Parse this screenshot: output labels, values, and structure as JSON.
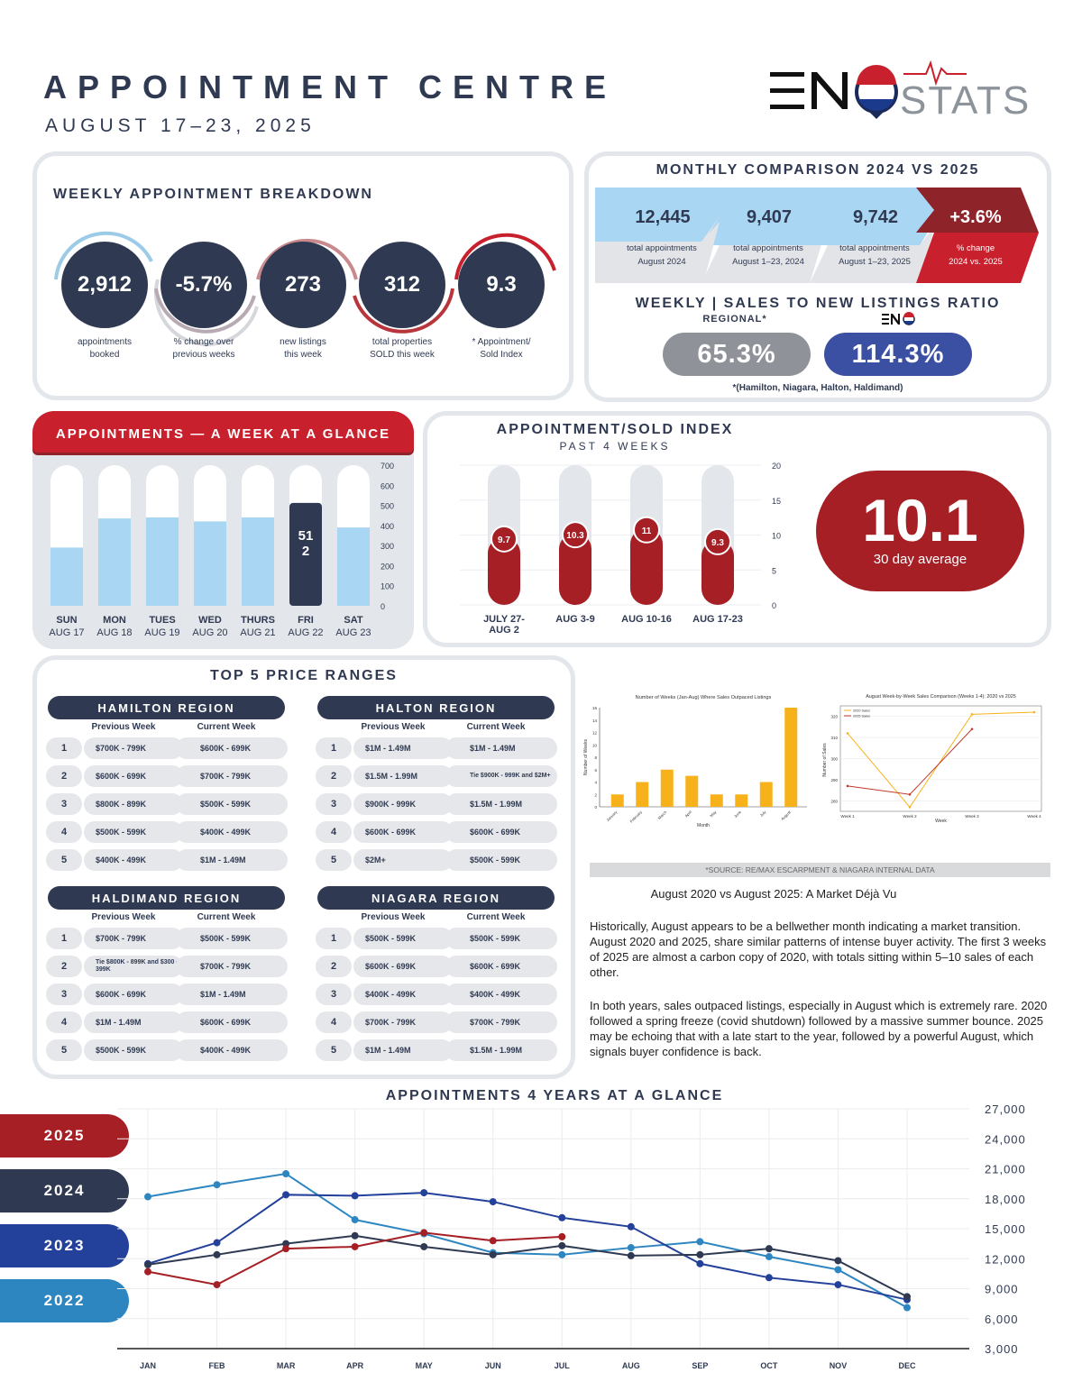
{
  "header": {
    "title": "APPOINTMENT CENTRE",
    "date_range": "AUGUST 17–23, 2025",
    "logo_text": "ENOSTATS"
  },
  "weekly_breakdown": {
    "title": "WEEKLY APPOINTMENT BREAKDOWN",
    "stats": [
      {
        "value": "2,912",
        "label1": "appointments",
        "label2": "booked"
      },
      {
        "value": "-5.7%",
        "label1": "% change over",
        "label2": "previous weeks"
      },
      {
        "value": "273",
        "label1": "new listings",
        "label2": "this week"
      },
      {
        "value": "312",
        "label1": "total properties",
        "label2": "SOLD this week"
      },
      {
        "value": "9.3",
        "label1": "* Appointment/",
        "label2": "Sold Index"
      }
    ]
  },
  "monthly_comparison": {
    "title": "MONTHLY COMPARISON 2024 VS 2025",
    "items": [
      {
        "value": "12,445",
        "label1": "total appointments",
        "label2": "August 2024"
      },
      {
        "value": "9,407",
        "label1": "total appointments",
        "label2": "August 1–23, 2024"
      },
      {
        "value": "9,742",
        "label1": "total appointments",
        "label2": "August 1–23, 2025"
      },
      {
        "value": "+3.6%",
        "label1": "% change",
        "label2": "2024 vs. 2025"
      }
    ]
  },
  "sales_ratio": {
    "title": "WEEKLY | SALES TO NEW LISTINGS RATIO",
    "regional_label": "REGIONAL*",
    "regional_value": "65.3%",
    "eno_value": "114.3%",
    "footnote": "*(Hamilton, Niagara, Halton, Haldimand)"
  },
  "week_glance": {
    "title": "APPOINTMENTS — A WEEK AT A GLANCE",
    "highlight_label": "512",
    "days": [
      {
        "day": "SUN",
        "date": "AUG 17"
      },
      {
        "day": "MON",
        "date": "AUG 18"
      },
      {
        "day": "TUES",
        "date": "AUG 19"
      },
      {
        "day": "WED",
        "date": "AUG 20"
      },
      {
        "day": "THURS",
        "date": "AUG 21"
      },
      {
        "day": "FRI",
        "date": "AUG 22"
      },
      {
        "day": "SAT",
        "date": "AUG 23"
      }
    ],
    "axis_ticks": [
      "700",
      "600",
      "500",
      "400",
      "300",
      "200",
      "100",
      "0"
    ]
  },
  "sold_index": {
    "title": "APPOINTMENT/SOLD INDEX",
    "subtitle": "PAST 4 WEEKS",
    "average_value": "10.1",
    "average_label": "30 day average",
    "axis_ticks": [
      "20",
      "15",
      "10",
      "5",
      "0"
    ],
    "weeks": [
      {
        "label1": "JULY 27-",
        "label2": "AUG 2",
        "value_label": "9.7"
      },
      {
        "label1": "AUG 3-9",
        "label2": "",
        "value_label": "10.3"
      },
      {
        "label1": "AUG 10-16",
        "label2": "",
        "value_label": "11"
      },
      {
        "label1": "AUG 17-23",
        "label2": "",
        "value_label": "9.3"
      }
    ]
  },
  "price_ranges": {
    "title": "TOP 5 PRICE RANGES",
    "prev_label": "Previous Week",
    "curr_label": "Current Week",
    "regions": [
      {
        "name": "HAMILTON REGION",
        "rows": [
          [
            "1",
            "$700K - 799K",
            "$600K - 699K"
          ],
          [
            "2",
            "$600K - 699K",
            "$700K - 799K"
          ],
          [
            "3",
            "$800K - 899K",
            "$500K - 599K"
          ],
          [
            "4",
            "$500K - 599K",
            "$400K - 499K"
          ],
          [
            "5",
            "$400K - 499K",
            "$1M - 1.49M"
          ]
        ]
      },
      {
        "name": "HALTON REGION",
        "rows": [
          [
            "1",
            "$1M - 1.49M",
            "$1M - 1.49M"
          ],
          [
            "2",
            "$1.5M - 1.99M",
            "Tie $900K - 999K and $2M+"
          ],
          [
            "3",
            "$900K - 999K",
            "$1.5M - 1.99M"
          ],
          [
            "4",
            "$600K - 699K",
            "$600K - 699K"
          ],
          [
            "5",
            "$2M+",
            "$500K - 599K"
          ]
        ]
      },
      {
        "name": "HALDIMAND REGION",
        "rows": [
          [
            "1",
            "$700K - 799K",
            "$500K - 599K"
          ],
          [
            "2",
            "Tie $800K - 899K and $300 - 399K",
            "$700K - 799K"
          ],
          [
            "3",
            "$600K - 699K",
            "$1M - 1.49M"
          ],
          [
            "4",
            "$1M - 1.49M",
            "$600K - 699K"
          ],
          [
            "5",
            "$500K - 599K",
            "$400K - 499K"
          ]
        ]
      },
      {
        "name": "NIAGARA REGION",
        "rows": [
          [
            "1",
            "$500K - 599K",
            "$500K - 599K"
          ],
          [
            "2",
            "$600K - 699K",
            "$600K - 699K"
          ],
          [
            "3",
            "$400K - 499K",
            "$400K - 499K"
          ],
          [
            "4",
            "$700K - 799K",
            "$700K - 799K"
          ],
          [
            "5",
            "$1M - 1.49M",
            "$1.5M - 1.99M"
          ]
        ]
      }
    ]
  },
  "mini_charts": {
    "weeks_chart_title": "Number of Weeks (Jan-Aug) Where Sales Outpaced Listings",
    "weeks_chart_xlabel": "Month",
    "weeks_chart_ylabel": "Number of Weeks",
    "line_chart_title": "August Week-by-Week Sales Comparison (Weeks 1-4): 2020 vs 2025",
    "line_chart_xlabel": "Week",
    "line_chart_ylabel": "Number of Sales",
    "source": "*SOURCE: RE/MAX ESCARPMENT & NIAGARA INTERNAL DATA"
  },
  "article": {
    "heading": "August 2020 vs August 2025: A Market Déjà Vu",
    "p1": "Historically, August appears to be a bellwether month indicating a market transition. August 2020 and 2025, share similar patterns of intense buyer activity. The first 3 weeks of 2025 are almost a carbon copy of 2020, with totals sitting within 5–10 sales of each other.",
    "p2": "In both years, sales outpaced listings, especially in August which is extremely rare. 2020 followed a spring freeze (covid shutdown) followed by a massive summer bounce. 2025 may be echoing that with a late start to the year, followed by a powerful August, which signals buyer confidence is back."
  },
  "four_years": {
    "title": "APPOINTMENTS 4 YEARS AT A GLANCE",
    "years": [
      "2025",
      "2024",
      "2023",
      "2022"
    ],
    "year_colors": [
      "#a51f25",
      "#2f3a52",
      "#23409a",
      "#2e86c1"
    ]
  },
  "chart_data": [
    {
      "type": "bar",
      "title": "APPOINTMENTS — A WEEK AT A GLANCE",
      "categories": [
        "SUN AUG 17",
        "MON AUG 18",
        "TUES AUG 19",
        "WED AUG 20",
        "THURS AUG 21",
        "FRI AUG 22",
        "SAT AUG 23"
      ],
      "values": [
        290,
        435,
        440,
        420,
        440,
        512,
        390
      ],
      "ylim": [
        0,
        700
      ]
    },
    {
      "type": "bar",
      "title": "APPOINTMENT/SOLD INDEX",
      "categories": [
        "JULY 27-AUG 2",
        "AUG 3-9",
        "AUG 10-16",
        "AUG 17-23"
      ],
      "values": [
        9.7,
        10.3,
        11,
        9.3
      ],
      "ylim": [
        0,
        20
      ]
    },
    {
      "type": "bar",
      "title": "Number of Weeks (Jan-Aug) Where Sales Outpaced Listings",
      "categories": [
        "January",
        "February",
        "March",
        "April",
        "May",
        "June",
        "July",
        "August"
      ],
      "values": [
        2,
        4,
        6,
        5,
        2,
        2,
        4,
        16
      ],
      "xlabel": "Month",
      "ylabel": "Number of Weeks",
      "ylim": [
        0,
        16
      ]
    },
    {
      "type": "line",
      "title": "August Week-by-Week Sales Comparison (Weeks 1-4): 2020 vs 2025",
      "categories": [
        "Week 1",
        "Week 2",
        "Week 3",
        "Week 4"
      ],
      "series": [
        {
          "name": "2020 Sales",
          "values": [
            312,
            277,
            321,
            322
          ]
        },
        {
          "name": "2025 Sales",
          "values": [
            287,
            283,
            314,
            null
          ]
        }
      ],
      "xlabel": "Week",
      "ylabel": "Number of Sales",
      "ylim": [
        275,
        325
      ]
    },
    {
      "type": "line",
      "title": "APPOINTMENTS 4 YEARS AT A GLANCE",
      "categories": [
        "JAN",
        "FEB",
        "MAR",
        "APR",
        "MAY",
        "JUN",
        "JUL",
        "AUG",
        "SEP",
        "OCT",
        "NOV",
        "DEC"
      ],
      "series": [
        {
          "name": "2025",
          "values": [
            10700,
            9400,
            13000,
            13200,
            14600,
            13800,
            14200,
            null,
            null,
            null,
            null,
            null
          ]
        },
        {
          "name": "2024",
          "values": [
            11400,
            12400,
            13500,
            14300,
            13200,
            12400,
            13300,
            12300,
            12400,
            13000,
            11800,
            8200
          ]
        },
        {
          "name": "2023",
          "values": [
            11500,
            13600,
            18400,
            18300,
            18600,
            17700,
            16100,
            15200,
            11500,
            10100,
            9400,
            7900
          ]
        },
        {
          "name": "2022",
          "values": [
            18200,
            19400,
            20500,
            15900,
            14500,
            12600,
            12400,
            13100,
            13700,
            12200,
            10900,
            7100
          ]
        }
      ],
      "ylim": [
        3000,
        27000
      ],
      "yticks": [
        "27,000",
        "24,000",
        "21,000",
        "18,000",
        "15,000",
        "12,000",
        "9,000",
        "6,000",
        "3,000"
      ]
    }
  ]
}
